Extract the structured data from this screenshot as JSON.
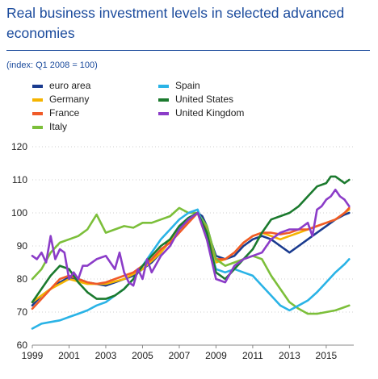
{
  "header": {
    "title": "Real business investment levels in selected advanced economies",
    "subtitle": "(index: Q1 2008 = 100)"
  },
  "colors": {
    "title": "#1a4a9c",
    "euro_area": "#1a3b8f",
    "germany": "#f5b400",
    "france": "#f05a28",
    "italy": "#7cbf3a",
    "spain": "#2ab3e6",
    "united_states": "#1b7a2e",
    "united_kingdom": "#8b3cc8"
  },
  "chart_data": {
    "type": "line",
    "title": "Real business investment levels in selected advanced economies",
    "subtitle": "(index: Q1 2008 = 100)",
    "xlabel": "",
    "ylabel": "",
    "xlim": [
      1999,
      2016.5
    ],
    "ylim": [
      60,
      120
    ],
    "x_ticks": [
      "1999",
      "2001",
      "2003",
      "2005",
      "2007",
      "2009",
      "2011",
      "2013",
      "2015"
    ],
    "y_ticks": [
      "60",
      "70",
      "80",
      "90",
      "100",
      "110",
      "120"
    ],
    "grid": true,
    "legend_position": "top-left",
    "series": [
      {
        "name": "euro area",
        "color": "#1a3b8f",
        "x": [
          1999,
          1999.5,
          2000,
          2000.5,
          2001,
          2001.5,
          2002,
          2002.5,
          2003,
          2003.5,
          2004,
          2004.5,
          2005,
          2005.5,
          2006,
          2006.5,
          2007,
          2007.5,
          2008,
          2008.25,
          2008.5,
          2008.75,
          2009,
          2009.5,
          2010,
          2010.5,
          2011,
          2011.5,
          2012,
          2012.5,
          2013,
          2013.5,
          2014,
          2014.5,
          2015,
          2015.5,
          2016,
          2016.25
        ],
        "y": [
          72,
          75,
          77,
          79,
          80.5,
          80,
          79,
          78.5,
          78,
          79,
          80,
          81,
          83,
          85,
          88,
          92,
          95,
          98,
          100,
          99,
          96,
          91,
          87,
          86,
          87,
          90,
          92,
          93,
          92,
          90,
          88,
          90,
          92,
          94,
          96,
          98,
          99.5,
          100
        ]
      },
      {
        "name": "Germany",
        "color": "#f5b400",
        "x": [
          1999,
          2000,
          2001,
          2002,
          2003,
          2004,
          2005,
          2006,
          2007,
          2008,
          2008.5,
          2009,
          2009.5,
          2010,
          2010.5,
          2011,
          2011.5,
          2012,
          2012.5,
          2013,
          2013.5,
          2014,
          2014.5,
          2015,
          2015.5,
          2016,
          2016.25
        ],
        "y": [
          73,
          77,
          80,
          78.5,
          78.5,
          80,
          83,
          88,
          95,
          100,
          92,
          85,
          86,
          88,
          91,
          93,
          94,
          93,
          92,
          93,
          94,
          95,
          96,
          97,
          98,
          100,
          101
        ]
      },
      {
        "name": "France",
        "color": "#f05a28",
        "x": [
          1999,
          1999.5,
          2000,
          2000.5,
          2001,
          2001.5,
          2002,
          2002.5,
          2003,
          2003.5,
          2004,
          2004.5,
          2005,
          2005.5,
          2006,
          2006.5,
          2007,
          2007.5,
          2008,
          2008.5,
          2009,
          2009.5,
          2010,
          2010.5,
          2011,
          2011.5,
          2012,
          2012.5,
          2013,
          2013.5,
          2014,
          2014.5,
          2015,
          2015.5,
          2016,
          2016.25
        ],
        "y": [
          71,
          74,
          77,
          80,
          81,
          80,
          79,
          78.5,
          79,
          80,
          81,
          82,
          84,
          86,
          89,
          91,
          94,
          97,
          100,
          95,
          86,
          86,
          88,
          91,
          93,
          94,
          94,
          93.5,
          94,
          95,
          95,
          96,
          97,
          98,
          100,
          101.5
        ]
      },
      {
        "name": "Italy",
        "color": "#7cbf3a",
        "x": [
          1999,
          1999.5,
          2000,
          2000.5,
          2001,
          2001.5,
          2002,
          2002.5,
          2003,
          2003.5,
          2004,
          2004.5,
          2005,
          2005.5,
          2006,
          2006.5,
          2007,
          2007.5,
          2008,
          2008.5,
          2009,
          2009.5,
          2010,
          2010.5,
          2011,
          2011.5,
          2012,
          2012.5,
          2013,
          2013.5,
          2014,
          2014.5,
          2015,
          2015.5,
          2016,
          2016.25
        ],
        "y": [
          80,
          83,
          88,
          91,
          92,
          93,
          95,
          99.5,
          94,
          95,
          96,
          95.5,
          97,
          97,
          98,
          99,
          101.5,
          100,
          100,
          96,
          86,
          84,
          85,
          86,
          87,
          86,
          81,
          77,
          73,
          71,
          69.5,
          69.5,
          70,
          70.5,
          71.5,
          72
        ]
      },
      {
        "name": "Spain",
        "color": "#2ab3e6",
        "x": [
          1999,
          1999.5,
          2000,
          2000.5,
          2001,
          2001.5,
          2002,
          2002.5,
          2003,
          2003.5,
          2004,
          2004.5,
          2005,
          2005.5,
          2006,
          2006.5,
          2007,
          2007.5,
          2008,
          2008.5,
          2009,
          2009.5,
          2010,
          2010.5,
          2011,
          2011.5,
          2012,
          2012.5,
          2013,
          2013.5,
          2014,
          2014.5,
          2015,
          2015.5,
          2016,
          2016.25
        ],
        "y": [
          65,
          66.5,
          67,
          67.5,
          68.5,
          69.5,
          70.5,
          72,
          73,
          75,
          77,
          80,
          84,
          88,
          92,
          95,
          98,
          100,
          101,
          93,
          83,
          82,
          83,
          82,
          81,
          78,
          75,
          72,
          70.5,
          72,
          73.5,
          76,
          79,
          82,
          84.5,
          86
        ]
      },
      {
        "name": "United States",
        "color": "#1b7a2e",
        "x": [
          1999,
          1999.5,
          2000,
          2000.5,
          2001,
          2001.5,
          2002,
          2002.5,
          2003,
          2003.5,
          2004,
          2004.5,
          2005,
          2005.5,
          2006,
          2006.5,
          2007,
          2007.5,
          2008,
          2008.5,
          2009,
          2009.5,
          2010,
          2010.5,
          2011,
          2011.5,
          2012,
          2012.5,
          2013,
          2013.5,
          2014,
          2014.5,
          2015,
          2015.25,
          2015.5,
          2016,
          2016.25
        ],
        "y": [
          73,
          77,
          81,
          84,
          83,
          79,
          76,
          74,
          74,
          75,
          77,
          80,
          84,
          87,
          90,
          92,
          96,
          98.5,
          100,
          94,
          82,
          80,
          83,
          86,
          89,
          94,
          98,
          99,
          100,
          102,
          105,
          108,
          109,
          111,
          111,
          109,
          110
        ]
      },
      {
        "name": "United Kingdom",
        "color": "#8b3cc8",
        "x": [
          1999,
          1999.25,
          1999.5,
          1999.75,
          2000,
          2000.25,
          2000.5,
          2000.75,
          2001,
          2001.25,
          2001.5,
          2001.75,
          2002,
          2002.5,
          2003,
          2003.5,
          2003.75,
          2004,
          2004.25,
          2004.5,
          2004.75,
          2005,
          2005.25,
          2005.5,
          2006,
          2006.5,
          2007,
          2007.5,
          2008,
          2008.5,
          2009,
          2009.5,
          2010,
          2010.5,
          2011,
          2011.5,
          2012,
          2012.5,
          2013,
          2013.5,
          2014,
          2014.25,
          2014.5,
          2014.75,
          2015,
          2015.25,
          2015.5,
          2015.75,
          2016,
          2016.25
        ],
        "y": [
          87,
          86,
          88,
          85,
          93,
          86,
          89,
          88,
          80,
          82,
          80,
          84,
          84,
          86,
          87,
          83,
          88,
          82,
          79,
          78,
          83,
          80,
          86,
          82,
          87,
          90,
          95,
          98,
          100,
          92,
          80,
          79,
          84,
          86,
          87,
          88,
          92,
          94,
          95,
          95,
          97,
          93,
          101,
          102,
          104,
          105,
          107,
          105,
          104,
          102
        ]
      }
    ]
  }
}
